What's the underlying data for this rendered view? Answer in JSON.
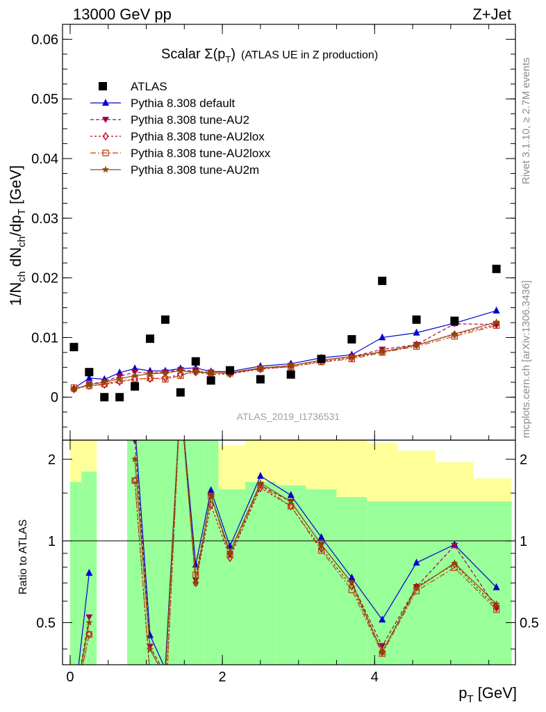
{
  "header": {
    "left": "13000 GeV pp",
    "right": "Z+Jet"
  },
  "plot_title": {
    "main": "Scalar Σ(p",
    "sub": "T",
    "close": ")",
    "suffix": "(ATLAS UE in Z production)"
  },
  "side_text": {
    "rivet": "Rivet 3.1.10, ≥ 2.7M events",
    "mcplots": "mcplots.cern.ch [arXiv:1306.3436]"
  },
  "watermark": "ATLAS_2019_I1736531",
  "axes": {
    "ylabel_main": "1/N",
    "ylabel_ch": "ch",
    "ylabel_dN": " dN",
    "ylabel_ch2": "ch",
    "ylabel_dp": "/dp",
    "ylabel_T": "T",
    "ylabel_unit": " [GeV]",
    "xlabel_p": "p",
    "xlabel_T": "T",
    "xlabel_unit": " [GeV]",
    "ratio_ylabel": "Ratio to ATLAS"
  },
  "chart_data": {
    "type": "scatter",
    "x": [
      0.05,
      0.25,
      0.45,
      0.65,
      0.85,
      1.05,
      1.25,
      1.45,
      1.65,
      1.85,
      2.1,
      2.5,
      2.9,
      3.3,
      3.7,
      4.1,
      4.55,
      5.05,
      5.6
    ],
    "xlim": [
      -0.1,
      5.85
    ],
    "ylim": [
      -0.0072,
      0.0625
    ],
    "xticks": [
      "0",
      "2",
      "4"
    ],
    "xtick_values": [
      0,
      2,
      4
    ],
    "yticks": [
      "0",
      "0.01",
      "0.02",
      "0.03",
      "0.04",
      "0.05",
      "0.06"
    ],
    "ytick_values": [
      0,
      0.01,
      0.02,
      0.03,
      0.04,
      0.05,
      0.06
    ],
    "ratio_ylim": [
      0.35,
      2.35
    ],
    "ratio_yticks": [
      "0.5",
      "1",
      "2"
    ],
    "ratio_ytick_values": [
      0.5,
      1,
      2
    ],
    "data": {
      "name": "ATLAS",
      "values": [
        0.0084,
        0.0042,
        0.0,
        0.0,
        0.0018,
        0.0098,
        0.013,
        0.0008,
        0.006,
        0.0028,
        0.0045,
        0.003,
        0.0038,
        0.0064,
        0.0097,
        0.0195,
        0.013,
        0.0128,
        0.0215
      ]
    },
    "series": [
      {
        "name": "Pythia 8.308 default",
        "color": "#0000d0",
        "dash": "",
        "marker": "triangle-up",
        "values": [
          0.0015,
          0.0032,
          0.003,
          0.0041,
          0.0048,
          0.0044,
          0.0044,
          0.0048,
          0.0049,
          0.0043,
          0.0043,
          0.0052,
          0.0056,
          0.0066,
          0.0071,
          0.01,
          0.0108,
          0.0124,
          0.0145
        ]
      },
      {
        "name": "Pythia 8.308 tune-AU2",
        "color": "#a0004a",
        "dash": "5,3",
        "marker": "triangle-down",
        "values": [
          0.0012,
          0.0022,
          0.0026,
          0.0035,
          0.0042,
          0.004,
          0.0042,
          0.0046,
          0.0043,
          0.0041,
          0.004,
          0.0048,
          0.0053,
          0.0062,
          0.0068,
          0.008,
          0.0088,
          0.0123,
          0.0122
        ]
      },
      {
        "name": "Pythia 8.308 tune-AU2lox",
        "color": "#c0001a",
        "dash": "3,3",
        "marker": "diamond-open",
        "values": [
          0.0014,
          0.0019,
          0.0021,
          0.0026,
          0.003,
          0.0031,
          0.0032,
          0.0038,
          0.0042,
          0.0038,
          0.0039,
          0.0047,
          0.0051,
          0.006,
          0.0066,
          0.0076,
          0.0088,
          0.0105,
          0.0122
        ]
      },
      {
        "name": "Pythia 8.308 tune-AU2loxx",
        "color": "#c0400a",
        "dash": "8,3,2,3",
        "marker": "square-open",
        "values": [
          0.0016,
          0.0019,
          0.0022,
          0.0028,
          0.003,
          0.0032,
          0.003,
          0.0036,
          0.0045,
          0.0041,
          0.004,
          0.0048,
          0.0051,
          0.0059,
          0.0064,
          0.0075,
          0.0085,
          0.0102,
          0.012
        ]
      },
      {
        "name": "Pythia 8.308 tune-AU2m",
        "color": "#8a4a00",
        "dash": "",
        "marker": "star",
        "values": [
          0.0013,
          0.0021,
          0.0025,
          0.0031,
          0.0036,
          0.0039,
          0.0041,
          0.0044,
          0.0042,
          0.0041,
          0.0041,
          0.0049,
          0.0053,
          0.0062,
          0.0068,
          0.0076,
          0.0087,
          0.0106,
          0.0126
        ]
      }
    ],
    "ratio_bands": {
      "edges": [
        0.0,
        0.15,
        0.35,
        0.55,
        0.75,
        0.95,
        1.15,
        1.35,
        1.55,
        1.75,
        1.95,
        2.3,
        2.7,
        3.1,
        3.5,
        3.9,
        4.3,
        4.8,
        5.3,
        5.8
      ],
      "green_lo": [
        0.35,
        0.35,
        null,
        null,
        0.35,
        0.35,
        0.35,
        0.35,
        0.35,
        0.35,
        0.35,
        0.35,
        0.35,
        0.35,
        0.35,
        0.35,
        0.35,
        0.35,
        0.35
      ],
      "green_hi": [
        1.65,
        1.8,
        null,
        null,
        2.35,
        2.35,
        2.35,
        2.35,
        2.35,
        2.35,
        1.55,
        1.65,
        1.6,
        1.55,
        1.45,
        1.4,
        1.4,
        1.4,
        1.4
      ],
      "yellow_lo": [
        0.35,
        0.35,
        null,
        null,
        0.35,
        0.35,
        0.35,
        0.35,
        0.35,
        0.35,
        0.35,
        0.35,
        0.35,
        0.35,
        0.35,
        0.35,
        0.35,
        0.62,
        0.62
      ],
      "yellow_hi": [
        2.35,
        2.35,
        null,
        null,
        2.35,
        2.35,
        2.35,
        2.35,
        2.35,
        2.35,
        2.25,
        2.35,
        2.35,
        2.35,
        2.35,
        2.3,
        2.15,
        1.95,
        1.7
      ]
    }
  }
}
